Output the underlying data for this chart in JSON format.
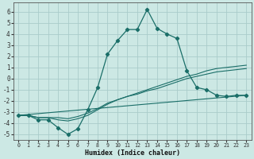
{
  "xlabel": "Humidex (Indice chaleur)",
  "background_color": "#cce8e4",
  "grid_color": "#aaccca",
  "line_color": "#1a6e68",
  "xlim": [
    -0.5,
    23.5
  ],
  "ylim": [
    -5.5,
    6.8
  ],
  "xticks": [
    0,
    1,
    2,
    3,
    4,
    5,
    6,
    7,
    8,
    9,
    10,
    11,
    12,
    13,
    14,
    15,
    16,
    17,
    18,
    19,
    20,
    21,
    22,
    23
  ],
  "yticks": [
    -5,
    -4,
    -3,
    -2,
    -1,
    0,
    1,
    2,
    3,
    4,
    5,
    6
  ],
  "series_main": {
    "x": [
      0,
      1,
      2,
      3,
      4,
      5,
      6,
      7,
      8,
      9,
      10,
      11,
      12,
      13,
      14,
      15,
      16,
      17,
      18,
      19,
      20,
      21,
      22,
      23
    ],
    "y": [
      -3.3,
      -3.3,
      -3.7,
      -3.7,
      -4.4,
      -5.0,
      -4.5,
      -2.8,
      -0.8,
      2.2,
      3.4,
      4.4,
      4.4,
      6.2,
      4.5,
      4.0,
      3.6,
      0.7,
      -0.8,
      -1.0,
      -1.5,
      -1.6,
      -1.5,
      -1.5
    ]
  },
  "series_line2": {
    "x": [
      0,
      23
    ],
    "y": [
      -3.3,
      -1.5
    ]
  },
  "series_line3": {
    "x": [
      0,
      1,
      2,
      3,
      4,
      5,
      6,
      7,
      8,
      9,
      10,
      11,
      12,
      13,
      14,
      15,
      16,
      17,
      18,
      19,
      20,
      21,
      22,
      23
    ],
    "y": [
      -3.3,
      -3.3,
      -3.5,
      -3.5,
      -3.5,
      -3.6,
      -3.4,
      -3.1,
      -2.7,
      -2.2,
      -1.9,
      -1.6,
      -1.4,
      -1.1,
      -0.9,
      -0.6,
      -0.3,
      0.0,
      0.2,
      0.4,
      0.6,
      0.7,
      0.8,
      0.9
    ]
  },
  "series_line4": {
    "x": [
      0,
      1,
      2,
      3,
      4,
      5,
      6,
      7,
      8,
      9,
      10,
      11,
      12,
      13,
      14,
      15,
      16,
      17,
      18,
      19,
      20,
      21,
      22,
      23
    ],
    "y": [
      -3.3,
      -3.3,
      -3.5,
      -3.5,
      -3.7,
      -3.8,
      -3.6,
      -3.3,
      -2.8,
      -2.3,
      -1.9,
      -1.6,
      -1.3,
      -1.0,
      -0.7,
      -0.4,
      -0.1,
      0.2,
      0.4,
      0.7,
      0.9,
      1.0,
      1.1,
      1.2
    ]
  }
}
